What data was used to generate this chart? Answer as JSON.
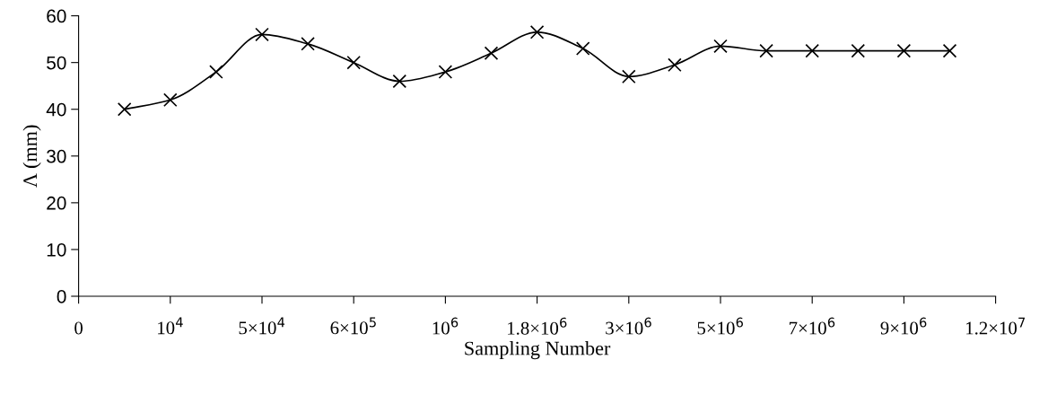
{
  "chart_data": {
    "type": "line",
    "xlabel": "Sampling Number",
    "ylabel": "Λ (mm)",
    "categories": [
      "0",
      null,
      "10$^{4}$",
      null,
      "5×10$^{4}$",
      null,
      "6×10$^{5}$",
      null,
      "10$^{6}$",
      null,
      "1.8×10$^{6}$",
      null,
      "3×10$^{6}$",
      null,
      "5×10$^{6}$",
      null,
      "7×10$^{6}$",
      null,
      "9×10$^{6}$",
      null,
      "1.2×10$^{7}$"
    ],
    "series": [
      {
        "color": "#000000",
        "values": [
          null,
          40,
          42,
          48,
          56,
          54,
          50,
          46,
          48,
          52,
          56.5,
          53,
          47,
          49.5,
          53.5,
          52.5,
          52.5,
          52.5,
          52.5,
          52.5,
          null
        ]
      }
    ],
    "ylim": [
      0,
      60
    ],
    "yticks": [
      0,
      10,
      20,
      30,
      40,
      50,
      60
    ],
    "grid": false,
    "legend": false,
    "marker": "cross",
    "line_style": "solid"
  }
}
